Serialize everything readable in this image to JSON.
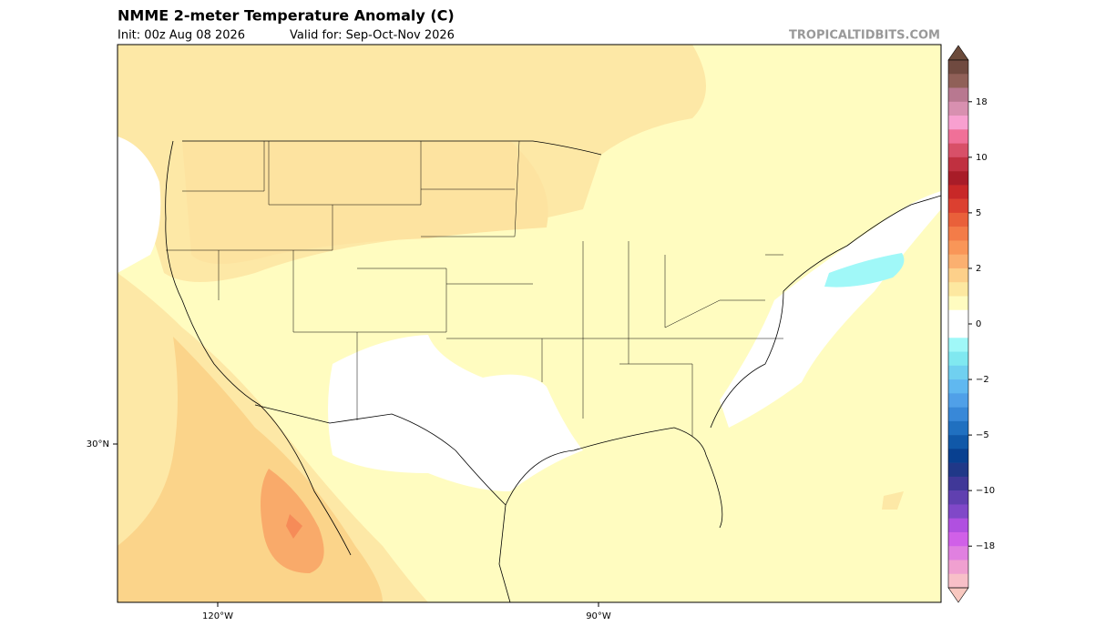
{
  "header": {
    "title": "NMME 2-meter Temperature Anomaly (C)",
    "init": "Init: 00z Aug 08 2026",
    "valid": "Valid for: Sep-Oct-Nov 2026",
    "credit": "TROPICALTIDBITS.COM"
  },
  "map": {
    "lat_labels": [
      "30°N"
    ],
    "lon_labels": [
      "120°W",
      "90°W"
    ]
  },
  "colorbar": {
    "ticks": [
      18,
      10,
      5,
      2,
      0,
      {
        "value": -2,
        "label": "−2"
      },
      {
        "value": -5,
        "label": "−5"
      },
      {
        "value": -10,
        "label": "−10"
      },
      {
        "value": -18,
        "label": "−18"
      }
    ],
    "colors": [
      "#704a40",
      "#906058",
      "#b87890",
      "#d890b0",
      "#f8a0d0",
      "#f07098",
      "#d85068",
      "#c03040",
      "#a81c28",
      "#c82828",
      "#dc4030",
      "#e9603a",
      "#f37c48",
      "#f99658",
      "#fbb070",
      "#fdd08a",
      "#fde8a0",
      "#fffcc0",
      "#ffffff",
      "#ffffff",
      "#a0f8f8",
      "#80e8f0",
      "#70d0f0",
      "#60b8f0",
      "#50a0e8",
      "#3888d8",
      "#2070c0",
      "#1058a8",
      "#084090",
      "#203888",
      "#403898",
      "#6040b0",
      "#8048c8",
      "#b050e0",
      "#d060e8",
      "#e080e0",
      "#f0a0d0",
      "#f8c0c8"
    ],
    "top_color": "#6b4a3a",
    "bottom_color": "#f8c8c0"
  }
}
